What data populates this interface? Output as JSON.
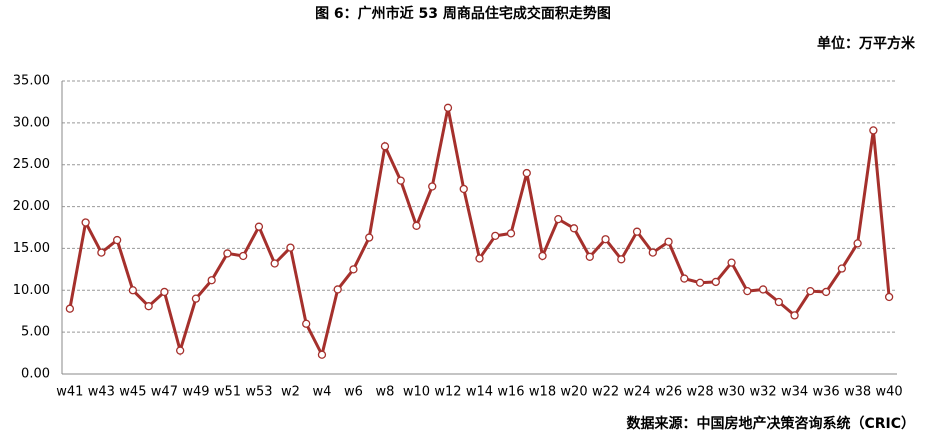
{
  "chart_data": {
    "type": "line",
    "title": "图 6：广州市近 53 周商品住宅成交面积走势图",
    "subtitle": "单位：万平方米",
    "source": "数据来源：中国房地产决策咨询系统（CRIC）",
    "categories": [
      "w41",
      null,
      "w43",
      null,
      "w45",
      null,
      "w47",
      null,
      "w49",
      null,
      "w51",
      null,
      "w53",
      null,
      "w2",
      null,
      "w4",
      null,
      "w6",
      null,
      "w8",
      null,
      "w10",
      null,
      "w12",
      null,
      "w14",
      null,
      "w16",
      null,
      "w18",
      null,
      "w20",
      null,
      "w22",
      null,
      "w24",
      null,
      "w26",
      null,
      "w28",
      null,
      "w30",
      null,
      "w32",
      null,
      "w34",
      null,
      "w36",
      null,
      "w38",
      null,
      "w40"
    ],
    "values": [
      7.8,
      18.1,
      14.5,
      16.0,
      10.0,
      8.1,
      9.8,
      2.8,
      9.0,
      11.2,
      14.4,
      14.1,
      17.6,
      13.2,
      15.1,
      6.0,
      2.3,
      10.1,
      12.5,
      16.3,
      27.2,
      23.1,
      17.7,
      22.4,
      31.8,
      22.1,
      13.8,
      16.5,
      16.8,
      24.0,
      14.1,
      18.5,
      17.4,
      14.0,
      16.1,
      13.7,
      17.0,
      14.5,
      15.8,
      11.4,
      10.9,
      11.0,
      13.3,
      9.9,
      10.1,
      8.6,
      7.0,
      9.9,
      9.8,
      12.6,
      15.6,
      29.1,
      9.2
    ],
    "color": "#a5302c",
    "ylim": [
      0,
      35
    ],
    "yticks": [
      {
        "value": 0,
        "label": "0.00"
      },
      {
        "value": 5,
        "label": "5.00"
      },
      {
        "value": 10,
        "label": "10.00"
      },
      {
        "value": 15,
        "label": "15.00"
      },
      {
        "value": 20,
        "label": "20.00"
      },
      {
        "value": 25,
        "label": "25.00"
      },
      {
        "value": 30,
        "label": "30.00"
      },
      {
        "value": 35,
        "label": "35.00"
      }
    ],
    "grid": true
  }
}
